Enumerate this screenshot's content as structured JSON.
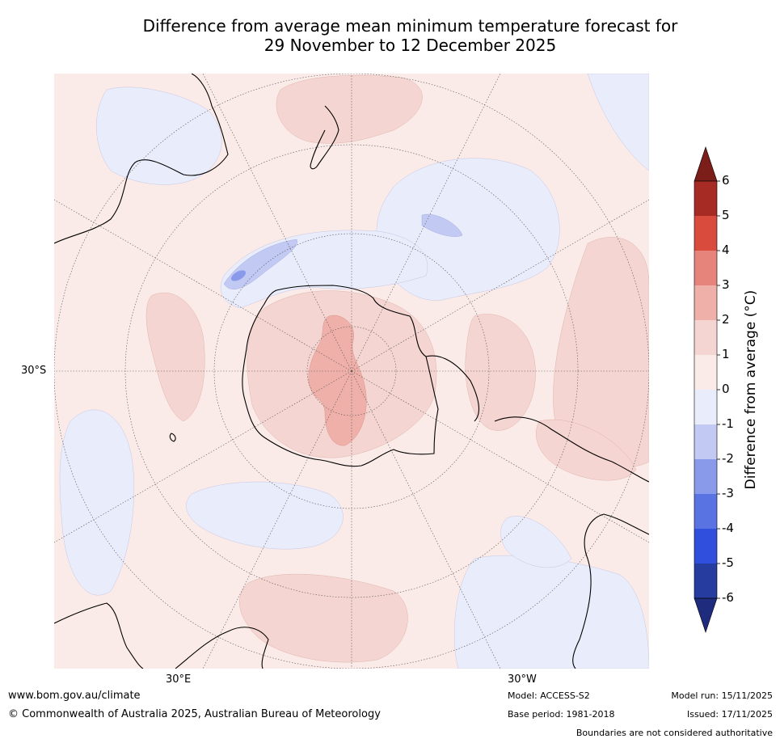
{
  "title": {
    "line1": "Difference from average mean minimum temperature forecast for",
    "line2": "29 November to 12 December 2025"
  },
  "map": {
    "lat_label": "30°S",
    "lon_labels": [
      "30°E",
      "30°W"
    ]
  },
  "colorbar": {
    "label": "Difference from average (°C)",
    "ticks": [
      "6",
      "5",
      "4",
      "3",
      "2",
      "1",
      "0",
      "-1",
      "-2",
      "-3",
      "-4",
      "-5",
      "-6"
    ],
    "colors": [
      "#7b1e1a",
      "#a62b25",
      "#d94b3c",
      "#e6837a",
      "#eeb0a9",
      "#f5d5d1",
      "#fbebe8",
      "#e9ecfa",
      "#c2c9f3",
      "#8a9aea",
      "#5a73e2",
      "#2f4fdc",
      "#263c9f",
      "#1f2b7d"
    ]
  },
  "footer": {
    "url": "www.bom.gov.au/climate",
    "copyright": "© Commonwealth of Australia 2025, Australian Bureau of Meteorology",
    "model": "Model: ACCESS-S2",
    "base_period": "Base period: 1981-2018",
    "model_run": "Model run: 15/11/2025",
    "issued": "Issued: 17/11/2025",
    "disclaimer": "Boundaries are not considered authoritative"
  }
}
